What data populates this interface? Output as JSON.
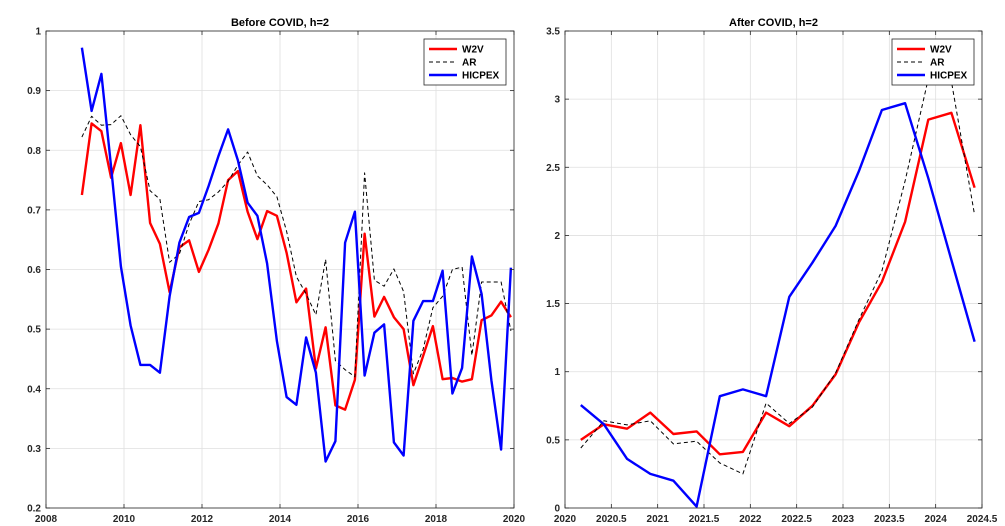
{
  "chart_data": [
    {
      "type": "line",
      "title": "Before COVID, h=2",
      "xlabel": "",
      "ylabel": "",
      "xlim": [
        2008,
        2020
      ],
      "ylim": [
        0.2,
        1
      ],
      "xticks": [
        2008,
        2010,
        2012,
        2014,
        2016,
        2018,
        2020
      ],
      "yticks": [
        0.2,
        0.3,
        0.4,
        0.5,
        0.6,
        0.7,
        0.8,
        0.9,
        1
      ],
      "grid": true,
      "legend_position": "top-right",
      "series": [
        {
          "name": "W2V",
          "color": "#ff0000",
          "style": "solid",
          "x": [
            2008.92,
            2009.17,
            2009.42,
            2009.67,
            2009.92,
            2010.17,
            2010.42,
            2010.67,
            2010.92,
            2011.17,
            2011.42,
            2011.67,
            2011.92,
            2012.17,
            2012.42,
            2012.67,
            2012.92,
            2013.17,
            2013.42,
            2013.67,
            2013.92,
            2014.17,
            2014.42,
            2014.67,
            2014.92,
            2015.17,
            2015.42,
            2015.67,
            2015.92,
            2016.17,
            2016.42,
            2016.67,
            2016.92,
            2017.17,
            2017.42,
            2017.67,
            2017.92,
            2018.17,
            2018.42,
            2018.67,
            2018.92,
            2019.17,
            2019.42,
            2019.67,
            2019.92
          ],
          "y": [
            0.725,
            0.845,
            0.832,
            0.754,
            0.812,
            0.725,
            0.842,
            0.678,
            0.643,
            0.562,
            0.637,
            0.649,
            0.596,
            0.633,
            0.677,
            0.75,
            0.765,
            0.697,
            0.651,
            0.698,
            0.69,
            0.628,
            0.545,
            0.568,
            0.434,
            0.503,
            0.372,
            0.365,
            0.415,
            0.66,
            0.521,
            0.554,
            0.52,
            0.5,
            0.406,
            0.455,
            0.505,
            0.416,
            0.418,
            0.412,
            0.416,
            0.515,
            0.523,
            0.546,
            0.52
          ]
        },
        {
          "name": "AR",
          "color": "#000000",
          "style": "dashed",
          "x": [
            2008.92,
            2009.17,
            2009.42,
            2009.67,
            2009.92,
            2010.17,
            2010.42,
            2010.67,
            2010.92,
            2011.17,
            2011.42,
            2011.67,
            2011.92,
            2012.17,
            2012.42,
            2012.67,
            2012.92,
            2013.17,
            2013.42,
            2013.67,
            2013.92,
            2014.17,
            2014.42,
            2014.67,
            2014.92,
            2015.17,
            2015.42,
            2015.67,
            2015.92,
            2016.17,
            2016.42,
            2016.67,
            2016.92,
            2017.17,
            2017.42,
            2017.67,
            2017.92,
            2018.17,
            2018.42,
            2018.67,
            2018.92,
            2019.17,
            2019.42,
            2019.67,
            2019.92
          ],
          "y": [
            0.822,
            0.857,
            0.842,
            0.843,
            0.858,
            0.826,
            0.806,
            0.732,
            0.718,
            0.612,
            0.626,
            0.676,
            0.714,
            0.717,
            0.73,
            0.748,
            0.775,
            0.797,
            0.757,
            0.742,
            0.722,
            0.664,
            0.588,
            0.559,
            0.524,
            0.617,
            0.447,
            0.432,
            0.42,
            0.762,
            0.582,
            0.572,
            0.601,
            0.563,
            0.425,
            0.466,
            0.536,
            0.555,
            0.6,
            0.604,
            0.456,
            0.579,
            0.579,
            0.579,
            0.497
          ]
        },
        {
          "name": "HICPEX",
          "color": "#0000ff",
          "style": "solid",
          "x": [
            2008.92,
            2009.17,
            2009.42,
            2009.67,
            2009.92,
            2010.17,
            2010.42,
            2010.67,
            2010.92,
            2011.17,
            2011.42,
            2011.67,
            2011.92,
            2012.17,
            2012.42,
            2012.67,
            2012.92,
            2013.17,
            2013.42,
            2013.67,
            2013.92,
            2014.17,
            2014.42,
            2014.67,
            2014.92,
            2015.17,
            2015.42,
            2015.67,
            2015.92,
            2016.17,
            2016.42,
            2016.67,
            2016.92,
            2017.17,
            2017.42,
            2017.67,
            2017.92,
            2018.17,
            2018.42,
            2018.67,
            2018.92,
            2019.17,
            2019.42,
            2019.67,
            2019.92
          ],
          "y": [
            0.972,
            0.866,
            0.928,
            0.772,
            0.605,
            0.506,
            0.44,
            0.44,
            0.427,
            0.555,
            0.645,
            0.688,
            0.695,
            0.74,
            0.79,
            0.835,
            0.783,
            0.712,
            0.69,
            0.61,
            0.48,
            0.386,
            0.373,
            0.486,
            0.427,
            0.278,
            0.312,
            0.645,
            0.697,
            0.422,
            0.494,
            0.508,
            0.31,
            0.288,
            0.514,
            0.547,
            0.547,
            0.598,
            0.392,
            0.435,
            0.622,
            0.559,
            0.414,
            0.298,
            0.603
          ]
        }
      ]
    },
    {
      "type": "line",
      "title": "After COVID, h=2",
      "xlabel": "",
      "ylabel": "",
      "xlim": [
        2020,
        2024.5
      ],
      "ylim": [
        0,
        3.5
      ],
      "xticks": [
        2020,
        2020.5,
        2021,
        2021.5,
        2022,
        2022.5,
        2023,
        2023.5,
        2024,
        2024.5
      ],
      "yticks": [
        0,
        0.5,
        1,
        1.5,
        2,
        2.5,
        3,
        3.5
      ],
      "grid": true,
      "legend_position": "top-right",
      "series": [
        {
          "name": "W2V",
          "color": "#ff0000",
          "style": "solid",
          "x": [
            2020.17,
            2020.42,
            2020.67,
            2020.92,
            2021.17,
            2021.42,
            2021.67,
            2021.92,
            2022.17,
            2022.42,
            2022.67,
            2022.92,
            2023.17,
            2023.42,
            2023.67,
            2023.92,
            2024.17,
            2024.42
          ],
          "y": [
            0.5,
            0.614,
            0.582,
            0.7,
            0.543,
            0.562,
            0.394,
            0.412,
            0.7,
            0.6,
            0.75,
            0.98,
            1.36,
            1.66,
            2.1,
            2.85,
            2.9,
            2.35
          ]
        },
        {
          "name": "AR",
          "color": "#000000",
          "style": "dashed",
          "x": [
            2020.17,
            2020.42,
            2020.67,
            2020.92,
            2021.17,
            2021.42,
            2021.67,
            2021.92,
            2022.17,
            2022.42,
            2022.67,
            2022.92,
            2023.17,
            2023.42,
            2023.67,
            2023.92,
            2024.17,
            2024.42
          ],
          "y": [
            0.44,
            0.64,
            0.61,
            0.64,
            0.47,
            0.49,
            0.33,
            0.25,
            0.77,
            0.62,
            0.74,
            0.99,
            1.38,
            1.74,
            2.4,
            3.15,
            3.13,
            2.15
          ]
        },
        {
          "name": "HICPEX",
          "color": "#0000ff",
          "style": "solid",
          "x": [
            2020.17,
            2020.42,
            2020.67,
            2020.92,
            2021.17,
            2021.42,
            2021.67,
            2021.92,
            2022.17,
            2022.42,
            2022.67,
            2022.92,
            2023.17,
            2023.42,
            2023.67,
            2023.92,
            2024.17,
            2024.42
          ],
          "y": [
            0.755,
            0.614,
            0.36,
            0.25,
            0.2,
            0.01,
            0.82,
            0.87,
            0.82,
            1.55,
            1.8,
            2.07,
            2.47,
            2.92,
            2.97,
            2.42,
            1.82,
            1.22
          ]
        }
      ]
    }
  ]
}
